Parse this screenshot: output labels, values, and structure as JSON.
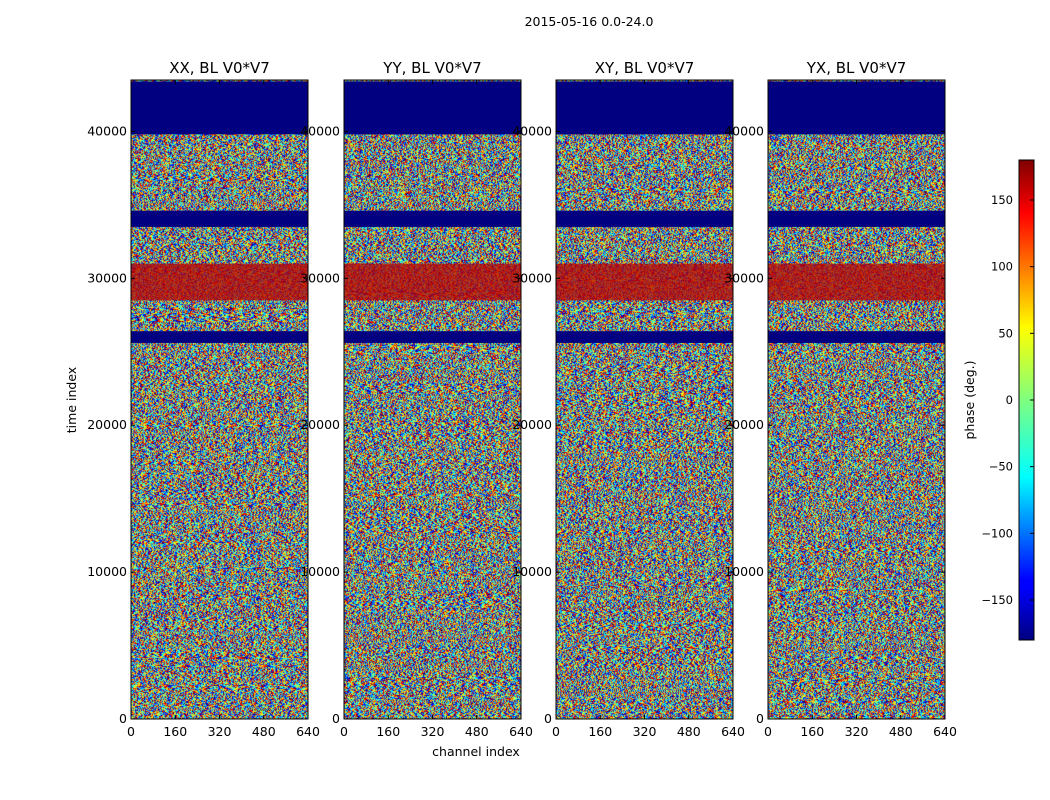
{
  "chart_data": {
    "type": "heatmap",
    "suptitle": "2015-05-16 0.0-24.0",
    "xlabel": "channel index",
    "ylabel": "time index",
    "xlim": [
      0,
      640
    ],
    "ylim": [
      0,
      43500
    ],
    "x_ticks": [
      0,
      160,
      320,
      480,
      640
    ],
    "y_ticks": [
      0,
      10000,
      20000,
      30000,
      40000
    ],
    "colorbar": {
      "label": "phase (deg.)",
      "range": [
        -180,
        180
      ],
      "ticks": [
        150,
        100,
        50,
        0,
        -50,
        -100,
        -150
      ],
      "tick_labels": [
        "150",
        "100",
        "50",
        "0",
        "−50",
        "−100",
        "−150"
      ],
      "colormap": "jet"
    },
    "panels": [
      {
        "title": "XX, BL V0*V7"
      },
      {
        "title": "YY, BL V0*V7"
      },
      {
        "title": "XY, BL V0*V7"
      },
      {
        "title": "YX, BL V0*V7"
      }
    ],
    "uniform_bands": [
      {
        "y_start": 39800,
        "y_end": 43400,
        "phase": -180
      },
      {
        "y_start": 33500,
        "y_end": 34600,
        "phase": -180
      },
      {
        "y_start": 25600,
        "y_end": 26400,
        "phase": -180
      },
      {
        "y_start": 28500,
        "y_end": 31000,
        "phase": 160
      }
    ]
  }
}
